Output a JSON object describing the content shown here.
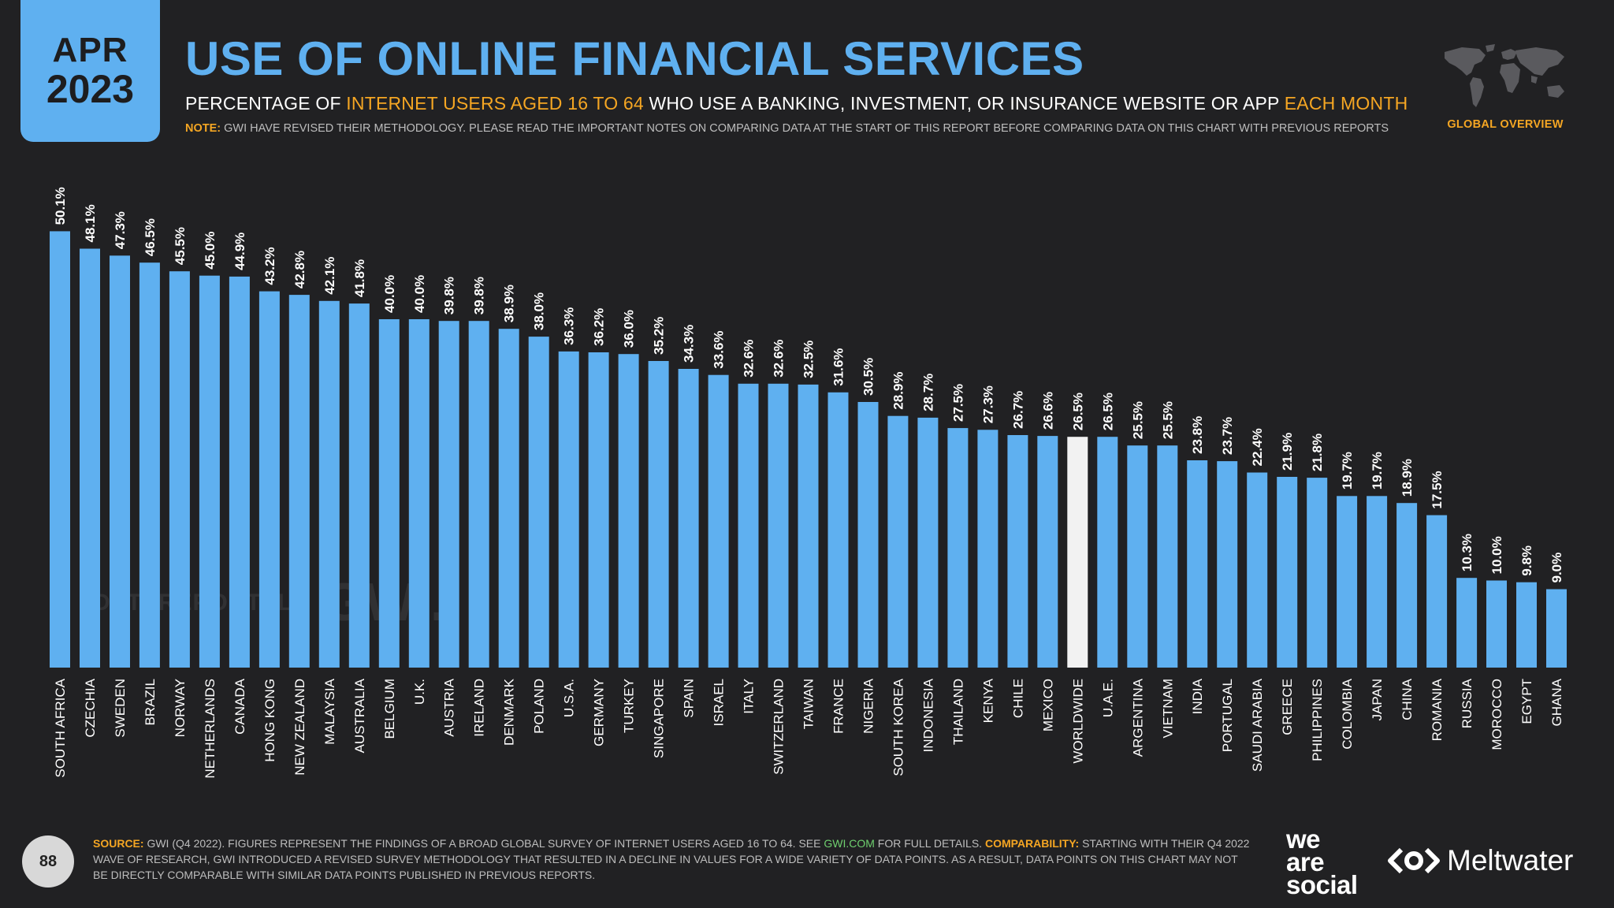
{
  "header": {
    "month": "APR",
    "year": "2023",
    "title": "USE OF ONLINE FINANCIAL SERVICES",
    "subtitle_parts": [
      "PERCENTAGE OF ",
      "INTERNET USERS AGED 16 TO 64",
      " WHO USE A BANKING, INVESTMENT, OR INSURANCE WEBSITE OR APP ",
      "EACH MONTH"
    ],
    "note_label": "NOTE:",
    "note_text": " GWI HAVE REVISED THEIR METHODOLOGY. PLEASE READ THE IMPORTANT NOTES ON COMPARING DATA AT THE START OF THIS REPORT BEFORE COMPARING DATA ON THIS CHART WITH PREVIOUS REPORTS",
    "overview_label": "GLOBAL OVERVIEW"
  },
  "colors": {
    "background": "#212123",
    "accent": "#5fb0f0",
    "highlight": "#f5a623",
    "highlight_bar": "#f2f2f2",
    "link": "#6fd06f"
  },
  "watermarks": {
    "datareportal": "DATAREPORTAL",
    "gwi": "GWI."
  },
  "chart_data": {
    "type": "bar",
    "title": "USE OF ONLINE FINANCIAL SERVICES",
    "xlabel": "",
    "ylabel": "",
    "ylim": [
      0,
      55
    ],
    "grid": false,
    "value_suffix": "%",
    "highlight_category": "WORLDWIDE",
    "categories": [
      "SOUTH AFRICA",
      "CZECHIA",
      "SWEDEN",
      "BRAZIL",
      "NORWAY",
      "NETHERLANDS",
      "CANADA",
      "HONG KONG",
      "NEW ZEALAND",
      "MALAYSIA",
      "AUSTRALIA",
      "BELGIUM",
      "U.K.",
      "AUSTRIA",
      "IRELAND",
      "DENMARK",
      "POLAND",
      "U.S.A.",
      "GERMANY",
      "TURKEY",
      "SINGAPORE",
      "SPAIN",
      "ISRAEL",
      "ITALY",
      "SWITZERLAND",
      "TAIWAN",
      "FRANCE",
      "NIGERIA",
      "SOUTH KOREA",
      "INDONESIA",
      "THAILAND",
      "KENYA",
      "CHILE",
      "MEXICO",
      "WORLDWIDE",
      "U.A.E.",
      "ARGENTINA",
      "VIETNAM",
      "INDIA",
      "PORTUGAL",
      "SAUDI ARABIA",
      "GREECE",
      "PHILIPPINES",
      "COLOMBIA",
      "JAPAN",
      "CHINA",
      "ROMANIA",
      "RUSSIA",
      "MOROCCO",
      "EGYPT",
      "GHANA"
    ],
    "values": [
      50.1,
      48.1,
      47.3,
      46.5,
      45.5,
      45.0,
      44.9,
      43.2,
      42.8,
      42.1,
      41.8,
      40.0,
      40.0,
      39.8,
      39.8,
      38.9,
      38.0,
      36.3,
      36.2,
      36.0,
      35.2,
      34.3,
      33.6,
      32.6,
      32.6,
      32.5,
      31.6,
      30.5,
      28.9,
      28.7,
      27.5,
      27.3,
      26.7,
      26.6,
      26.5,
      26.5,
      25.5,
      25.5,
      23.8,
      23.7,
      22.4,
      21.9,
      21.8,
      19.7,
      19.7,
      18.9,
      17.5,
      10.3,
      10.0,
      9.8,
      9.0
    ]
  },
  "footer": {
    "page": "88",
    "source_label": "SOURCE:",
    "source_text_a": " GWI (Q4 2022). FIGURES REPRESENT THE FINDINGS OF A BROAD GLOBAL SURVEY OF INTERNET USERS AGED 16 TO 64. SEE ",
    "source_link": "GWI.COM",
    "source_text_b": " FOR FULL DETAILS. ",
    "comparability_label": "COMPARABILITY:",
    "comparability_text": " STARTING WITH THEIR Q4 2022 WAVE OF RESEARCH, GWI INTRODUCED A REVISED SURVEY METHODOLOGY THAT RESULTED IN A DECLINE IN VALUES FOR A WIDE VARIETY OF DATA POINTS. AS A RESULT, DATA POINTS ON THIS CHART MAY NOT BE DIRECTLY COMPARABLE WITH SIMILAR DATA POINTS PUBLISHED IN PREVIOUS REPORTS.",
    "brand_we": "we",
    "brand_are": "are",
    "brand_social": "social",
    "brand_meltwater": "Meltwater"
  }
}
